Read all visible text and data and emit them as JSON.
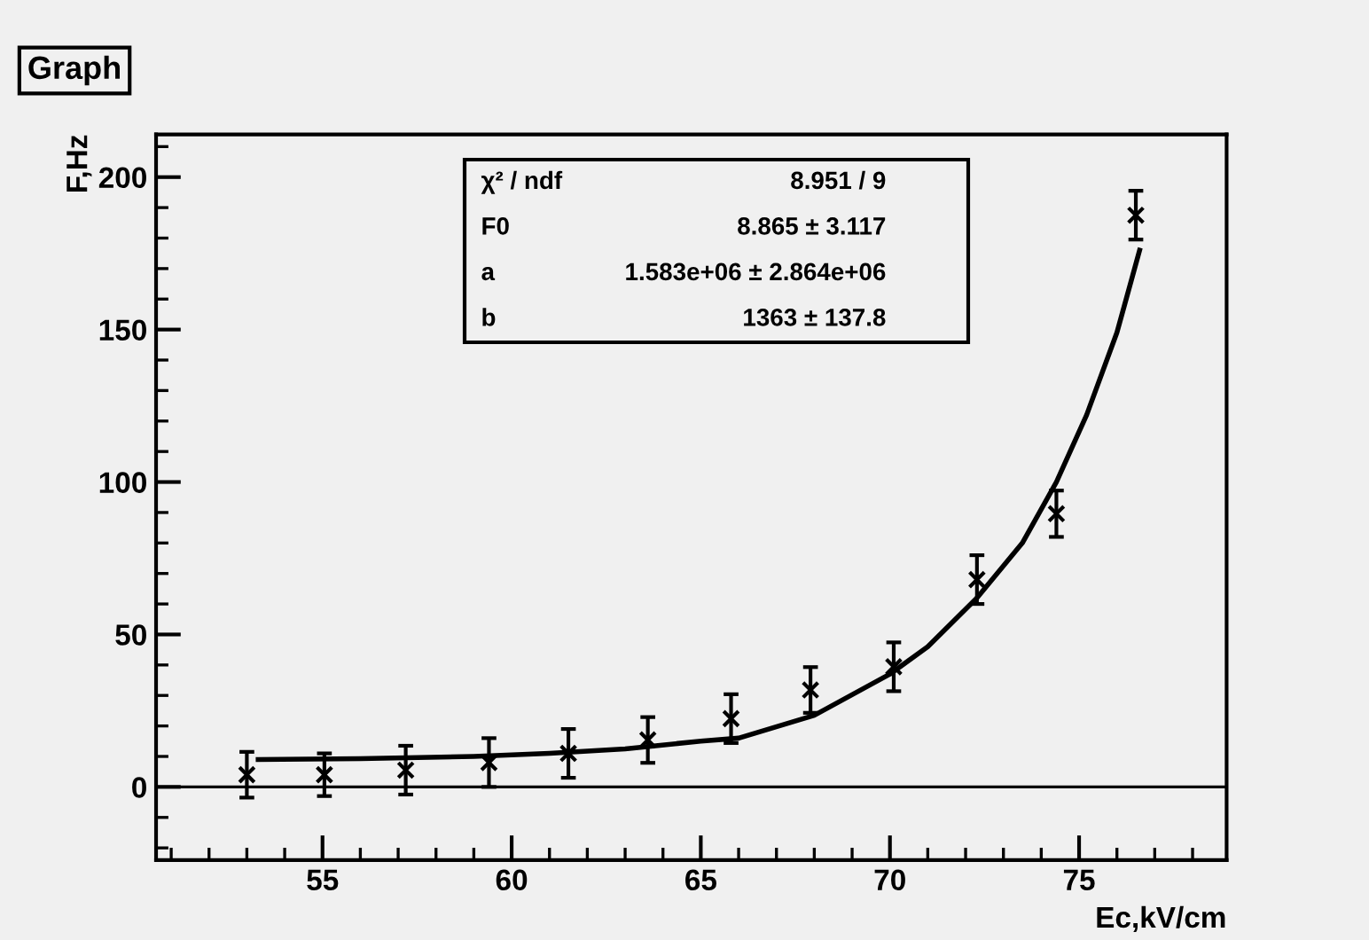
{
  "chart_data": {
    "type": "scatter",
    "title": "Graph",
    "xlabel": "Ec,kV/cm",
    "ylabel": "F,Hz",
    "xlim": [
      50.6,
      78.9
    ],
    "xticks": [
      55,
      60,
      65,
      70,
      75
    ],
    "ylim": [
      -24,
      214
    ],
    "yticks": [
      0,
      50,
      100,
      150,
      200
    ],
    "grid": false,
    "ref_lines": [
      {
        "axis": "y",
        "value": 0,
        "color": "#000000"
      }
    ],
    "annotations": [
      "χ² / ndf",
      "8.951 / 9",
      "F0",
      "8.865 ± 3.117",
      "a",
      "1.583e+06 ± 2.864e+06",
      "b",
      "1363 ± 137.8"
    ],
    "series": [
      {
        "color": "#000000",
        "marker": "cross",
        "x": [
          53.0,
          55.05,
          57.2,
          59.4,
          61.5,
          63.6,
          65.8,
          67.9,
          70.1,
          72.3,
          74.4,
          76.5
        ],
        "values": [
          4,
          4,
          5.5,
          8,
          11,
          15.4,
          22.4,
          31.8,
          39.4,
          68,
          89.6,
          187.5
        ],
        "errors": [
          7.5,
          7,
          8,
          8,
          8,
          7.5,
          8,
          7.5,
          8,
          8,
          7.6,
          8
        ]
      },
      {
        "type": "line",
        "color": "#000000",
        "line_style": "solid",
        "x": [
          53.3,
          56,
          59,
          61,
          63,
          65,
          66,
          68,
          70,
          71,
          72.3,
          73.5,
          74.4,
          75.2,
          76,
          76.6
        ],
        "values": [
          9,
          9.3,
          10,
          11,
          12.5,
          15,
          16,
          23.5,
          37,
          46,
          62,
          80,
          100,
          122,
          149,
          176
        ]
      }
    ]
  }
}
